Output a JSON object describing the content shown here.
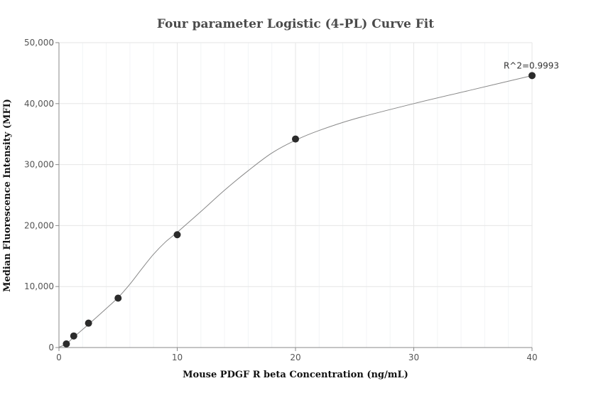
{
  "chart_data": {
    "type": "scatter",
    "title": "Four parameter Logistic (4-PL) Curve Fit",
    "xlabel": "Mouse PDGF R beta Concentration (ng/mL)",
    "ylabel": "Median Fluorescence Intensity (MFI)",
    "xlim": [
      0,
      40
    ],
    "ylim": [
      0,
      50000
    ],
    "x_ticks": [
      0,
      10,
      20,
      30,
      40
    ],
    "x_tick_labels": [
      "0",
      "10",
      "20",
      "30",
      "40"
    ],
    "y_ticks": [
      0,
      10000,
      20000,
      30000,
      40000,
      50000
    ],
    "y_tick_labels": [
      "0",
      "10,000",
      "20,000",
      "30,000",
      "40,000",
      "50,000"
    ],
    "grid": true,
    "legend": "none",
    "annotation": "R^2=0.9993",
    "series": [
      {
        "points": [
          {
            "x": 0.625,
            "y": 600
          },
          {
            "x": 1.25,
            "y": 1900
          },
          {
            "x": 2.5,
            "y": 4000
          },
          {
            "x": 5,
            "y": 8100
          },
          {
            "x": 10,
            "y": 18500
          },
          {
            "x": 20,
            "y": 34200
          },
          {
            "x": 40,
            "y": 44600
          }
        ]
      }
    ],
    "fit_curve": {
      "x": [
        0,
        0.625,
        1.25,
        2.5,
        4,
        5,
        6,
        7,
        8,
        9,
        10,
        12,
        14,
        16,
        18,
        20,
        22,
        25,
        30,
        35,
        40
      ],
      "y": [
        50,
        600,
        1700,
        3800,
        6400,
        8200,
        10400,
        12900,
        15300,
        17300,
        18900,
        22300,
        25800,
        29000,
        31900,
        34000,
        35600,
        37500,
        40000,
        42300,
        44600
      ]
    },
    "colors": {
      "point": "#2b2b2b",
      "curve": "#888888",
      "grid": "#e6e6e6",
      "axis": "#888888"
    }
  }
}
